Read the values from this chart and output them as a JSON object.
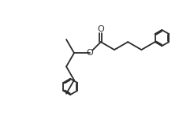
{
  "background_color": "#ffffff",
  "line_color": "#2a2a2a",
  "lw": 1.3,
  "figsize": [
    2.46,
    1.61
  ],
  "dpi": 100,
  "xlim": [
    0,
    10
  ],
  "ylim": [
    0,
    6.6
  ],
  "bl": 0.82,
  "ring_r": 0.42
}
